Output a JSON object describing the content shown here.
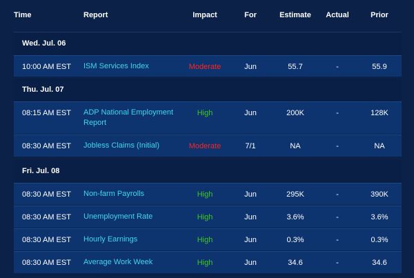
{
  "columns": {
    "time": "Time",
    "report": "Report",
    "impact": "Impact",
    "for": "For",
    "estimate": "Estimate",
    "actual": "Actual",
    "prior": "Prior"
  },
  "groups": [
    {
      "date": "Wed. Jul. 06",
      "rows": [
        {
          "time": "10:00 AM EST",
          "report": "ISM Services Index",
          "impact": "Moderate",
          "for": "Jun",
          "estimate": "55.7",
          "actual": "-",
          "prior": "55.9"
        }
      ]
    },
    {
      "date": "Thu. Jul. 07",
      "rows": [
        {
          "time": "08:15 AM EST",
          "report": "ADP National Employment Report",
          "impact": "High",
          "for": "Jun",
          "estimate": "200K",
          "actual": "-",
          "prior": "128K"
        },
        {
          "time": "08:30 AM EST",
          "report": "Jobless Claims (Initial)",
          "impact": "Moderate",
          "for": "7/1",
          "estimate": "NA",
          "actual": "-",
          "prior": "NA"
        }
      ]
    },
    {
      "date": "Fri. Jul. 08",
      "rows": [
        {
          "time": "08:30 AM EST",
          "report": "Non-farm Payrolls",
          "impact": "High",
          "for": "Jun",
          "estimate": "295K",
          "actual": "-",
          "prior": "390K"
        },
        {
          "time": "08:30 AM EST",
          "report": "Unemployment Rate",
          "impact": "High",
          "for": "Jun",
          "estimate": "3.6%",
          "actual": "-",
          "prior": "3.6%"
        },
        {
          "time": "08:30 AM EST",
          "report": "Hourly Earnings",
          "impact": "High",
          "for": "Jun",
          "estimate": "0.3%",
          "actual": "-",
          "prior": "0.3%"
        },
        {
          "time": "08:30 AM EST",
          "report": "Average Work Week",
          "impact": "High",
          "for": "Jun",
          "estimate": "34.6",
          "actual": "-",
          "prior": "34.6"
        }
      ]
    }
  ],
  "colors": {
    "background": "#0b2148",
    "row_background": "#0e3470",
    "report_link": "#3fd7e6",
    "impact_moderate": "#ff2323",
    "impact_high": "#3ec71d"
  }
}
